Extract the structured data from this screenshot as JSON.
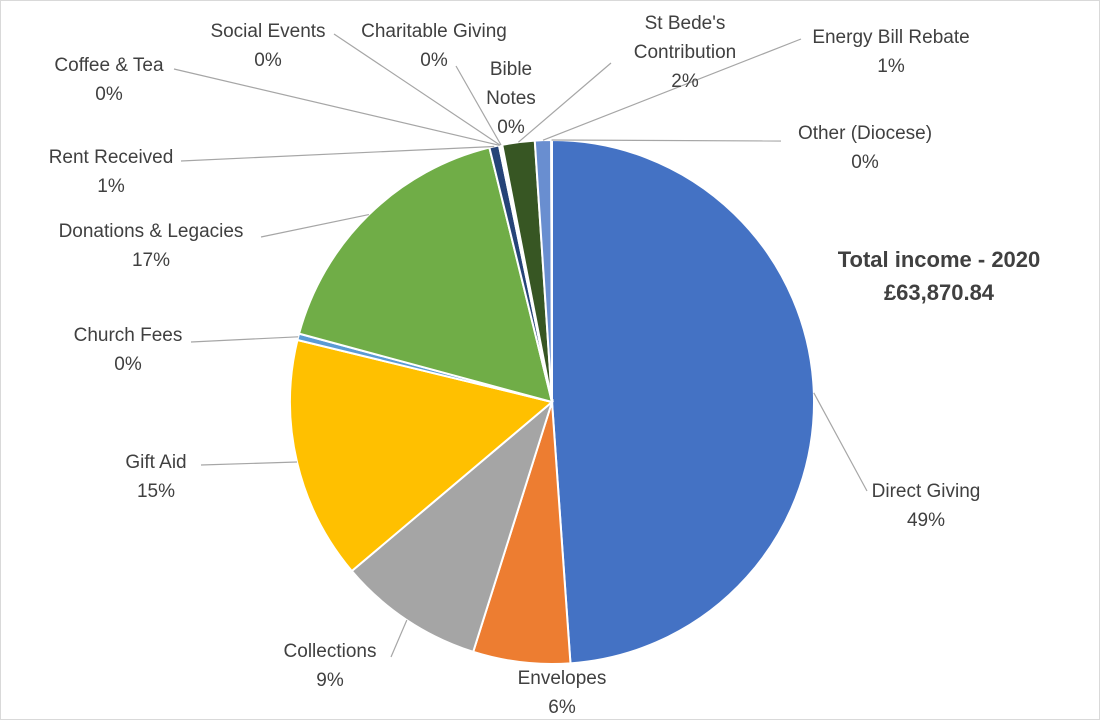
{
  "chart_data": {
    "type": "pie",
    "title": "Total income - 2020",
    "subtitle": "£63,870.84",
    "slices": [
      {
        "label": "Direct Giving",
        "value": 49,
        "percent_label": "49%",
        "color": "#4472C4"
      },
      {
        "label": "Envelopes",
        "value": 6,
        "percent_label": "6%",
        "color": "#ED7D31"
      },
      {
        "label": "Collections",
        "value": 9,
        "percent_label": "9%",
        "color": "#A5A5A5"
      },
      {
        "label": "Gift Aid",
        "value": 15,
        "percent_label": "15%",
        "color": "#FFC000"
      },
      {
        "label": "Church Fees",
        "value": 0.4,
        "percent_label": "0%",
        "color": "#5B9BD5"
      },
      {
        "label": "Donations & Legacies",
        "value": 17,
        "percent_label": "17%",
        "color": "#70AD47"
      },
      {
        "label": "Rent Received",
        "value": 0.6,
        "percent_label": "1%",
        "color": "#264478"
      },
      {
        "label": "Coffee & Tea",
        "value": 0.05,
        "percent_label": "0%",
        "color": "#9E480E"
      },
      {
        "label": "Social Events",
        "value": 0.05,
        "percent_label": "0%",
        "color": "#636363"
      },
      {
        "label": "Charitable Giving",
        "value": 0.05,
        "percent_label": "0%",
        "color": "#997300"
      },
      {
        "label": "Bible Notes",
        "value": 0.05,
        "percent_label": "0%",
        "color": "#255E91"
      },
      {
        "label": "St Bede's Contribution",
        "value": 2,
        "percent_label": "2%",
        "color": "#375623"
      },
      {
        "label": "Energy Bill Rebate",
        "value": 1,
        "percent_label": "1%",
        "color": "#698ED0"
      },
      {
        "label": "Other (Diocese)",
        "value": 0.05,
        "percent_label": "0%",
        "color": "#F1975A"
      }
    ]
  }
}
